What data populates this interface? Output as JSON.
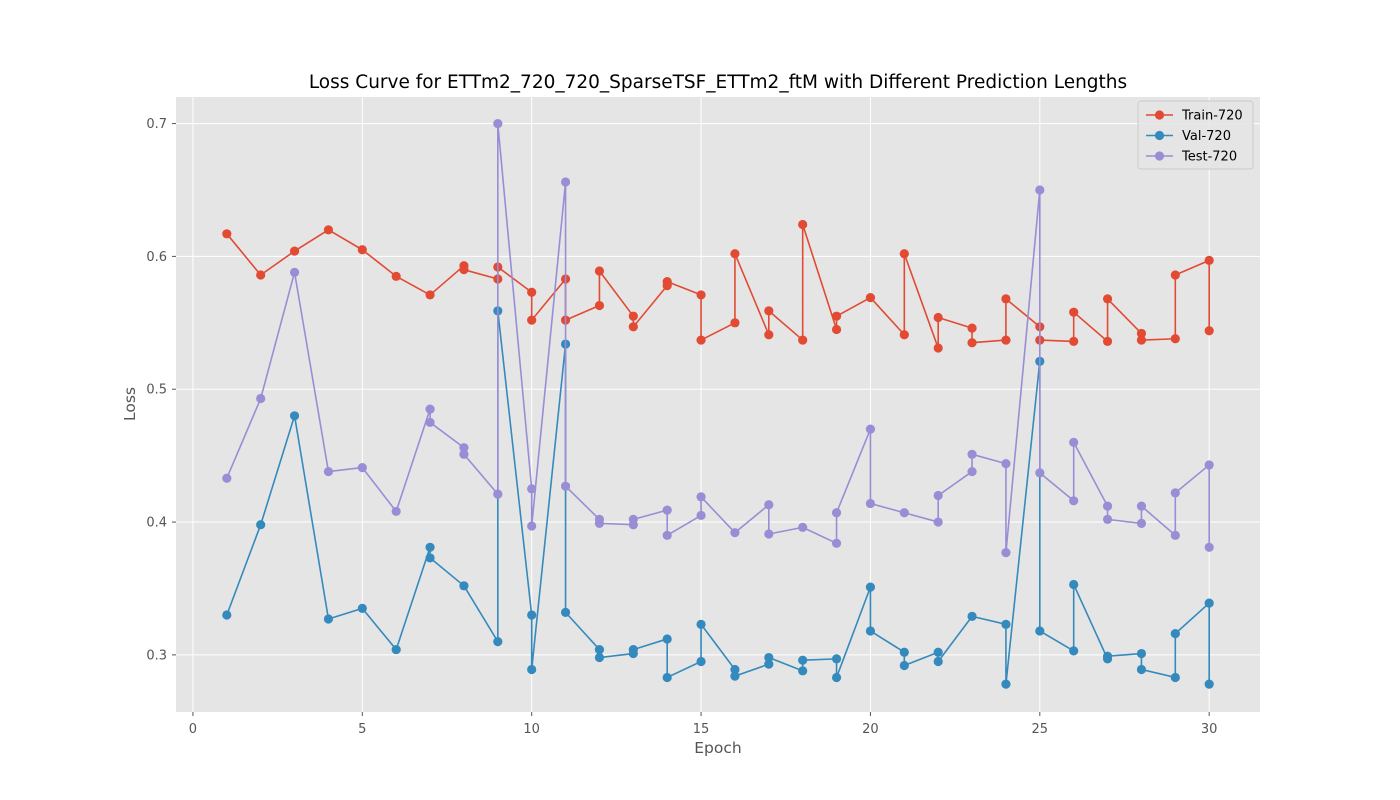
{
  "chart_data": {
    "type": "line",
    "title": "Loss Curve for ETTm2_720_720_SparseTSF_ETTm2_ftM with Different Prediction Lengths",
    "xlabel": "Epoch",
    "ylabel": "Loss",
    "xlim": [
      -0.5,
      31.5
    ],
    "ylim": [
      0.257,
      0.72
    ],
    "xticks": [
      0,
      5,
      10,
      15,
      20,
      25,
      30
    ],
    "yticks": [
      0.3,
      0.4,
      0.5,
      0.6,
      0.7
    ],
    "grid": true,
    "legend_position": "top-right",
    "series": [
      {
        "name": "Train-720",
        "color": "#E24A33",
        "x": [
          1,
          2,
          3,
          4,
          5,
          6,
          7,
          8,
          8,
          9,
          9,
          10,
          10,
          11,
          11,
          12,
          12,
          13,
          13,
          14,
          14,
          15,
          15,
          16,
          16,
          17,
          17,
          18,
          18,
          19,
          19,
          20,
          21,
          21,
          22,
          22,
          23,
          23,
          24,
          24,
          25,
          25,
          26,
          26,
          27,
          27,
          28,
          28,
          29,
          29,
          30,
          30
        ],
        "y": [
          0.617,
          0.586,
          0.604,
          0.62,
          0.605,
          0.585,
          0.571,
          0.593,
          0.59,
          0.583,
          0.592,
          0.573,
          0.552,
          0.583,
          0.552,
          0.563,
          0.589,
          0.555,
          0.547,
          0.578,
          0.581,
          0.571,
          0.537,
          0.55,
          0.602,
          0.541,
          0.559,
          0.537,
          0.624,
          0.545,
          0.555,
          0.569,
          0.541,
          0.602,
          0.531,
          0.554,
          0.546,
          0.535,
          0.537,
          0.568,
          0.547,
          0.537,
          0.536,
          0.558,
          0.536,
          0.568,
          0.542,
          0.537,
          0.538,
          0.586,
          0.597,
          0.544
        ]
      },
      {
        "name": "Val-720",
        "color": "#348ABD",
        "x": [
          1,
          2,
          3,
          4,
          5,
          6,
          7,
          7,
          8,
          9,
          9,
          10,
          10,
          11,
          11,
          12,
          12,
          13,
          13,
          14,
          14,
          15,
          15,
          16,
          16,
          17,
          17,
          18,
          18,
          19,
          19,
          20,
          20,
          21,
          21,
          22,
          22,
          23,
          24,
          24,
          25,
          25,
          26,
          26,
          27,
          27,
          28,
          28,
          29,
          29,
          30,
          30
        ],
        "y": [
          0.33,
          0.398,
          0.48,
          0.327,
          0.335,
          0.304,
          0.381,
          0.373,
          0.352,
          0.31,
          0.559,
          0.33,
          0.289,
          0.534,
          0.332,
          0.304,
          0.298,
          0.301,
          0.304,
          0.312,
          0.283,
          0.295,
          0.323,
          0.289,
          0.284,
          0.293,
          0.298,
          0.288,
          0.296,
          0.297,
          0.283,
          0.351,
          0.318,
          0.302,
          0.292,
          0.302,
          0.295,
          0.329,
          0.323,
          0.278,
          0.521,
          0.318,
          0.303,
          0.353,
          0.297,
          0.299,
          0.301,
          0.289,
          0.283,
          0.316,
          0.339,
          0.278
        ]
      },
      {
        "name": "Test-720",
        "color": "#988ED5",
        "x": [
          1,
          2,
          3,
          4,
          5,
          6,
          7,
          7,
          8,
          8,
          9,
          9,
          10,
          10,
          11,
          11,
          12,
          12,
          13,
          13,
          14,
          14,
          15,
          15,
          16,
          17,
          17,
          18,
          19,
          19,
          20,
          20,
          21,
          22,
          22,
          23,
          23,
          24,
          24,
          25,
          25,
          26,
          26,
          27,
          27,
          28,
          28,
          29,
          29,
          30,
          30
        ],
        "y": [
          0.433,
          0.493,
          0.588,
          0.438,
          0.441,
          0.408,
          0.485,
          0.475,
          0.456,
          0.451,
          0.421,
          0.7,
          0.425,
          0.397,
          0.656,
          0.427,
          0.402,
          0.399,
          0.398,
          0.402,
          0.409,
          0.39,
          0.405,
          0.419,
          0.392,
          0.413,
          0.391,
          0.396,
          0.384,
          0.407,
          0.47,
          0.414,
          0.407,
          0.4,
          0.42,
          0.438,
          0.451,
          0.444,
          0.377,
          0.65,
          0.437,
          0.416,
          0.46,
          0.412,
          0.402,
          0.399,
          0.412,
          0.39,
          0.422,
          0.443,
          0.381
        ]
      }
    ]
  }
}
